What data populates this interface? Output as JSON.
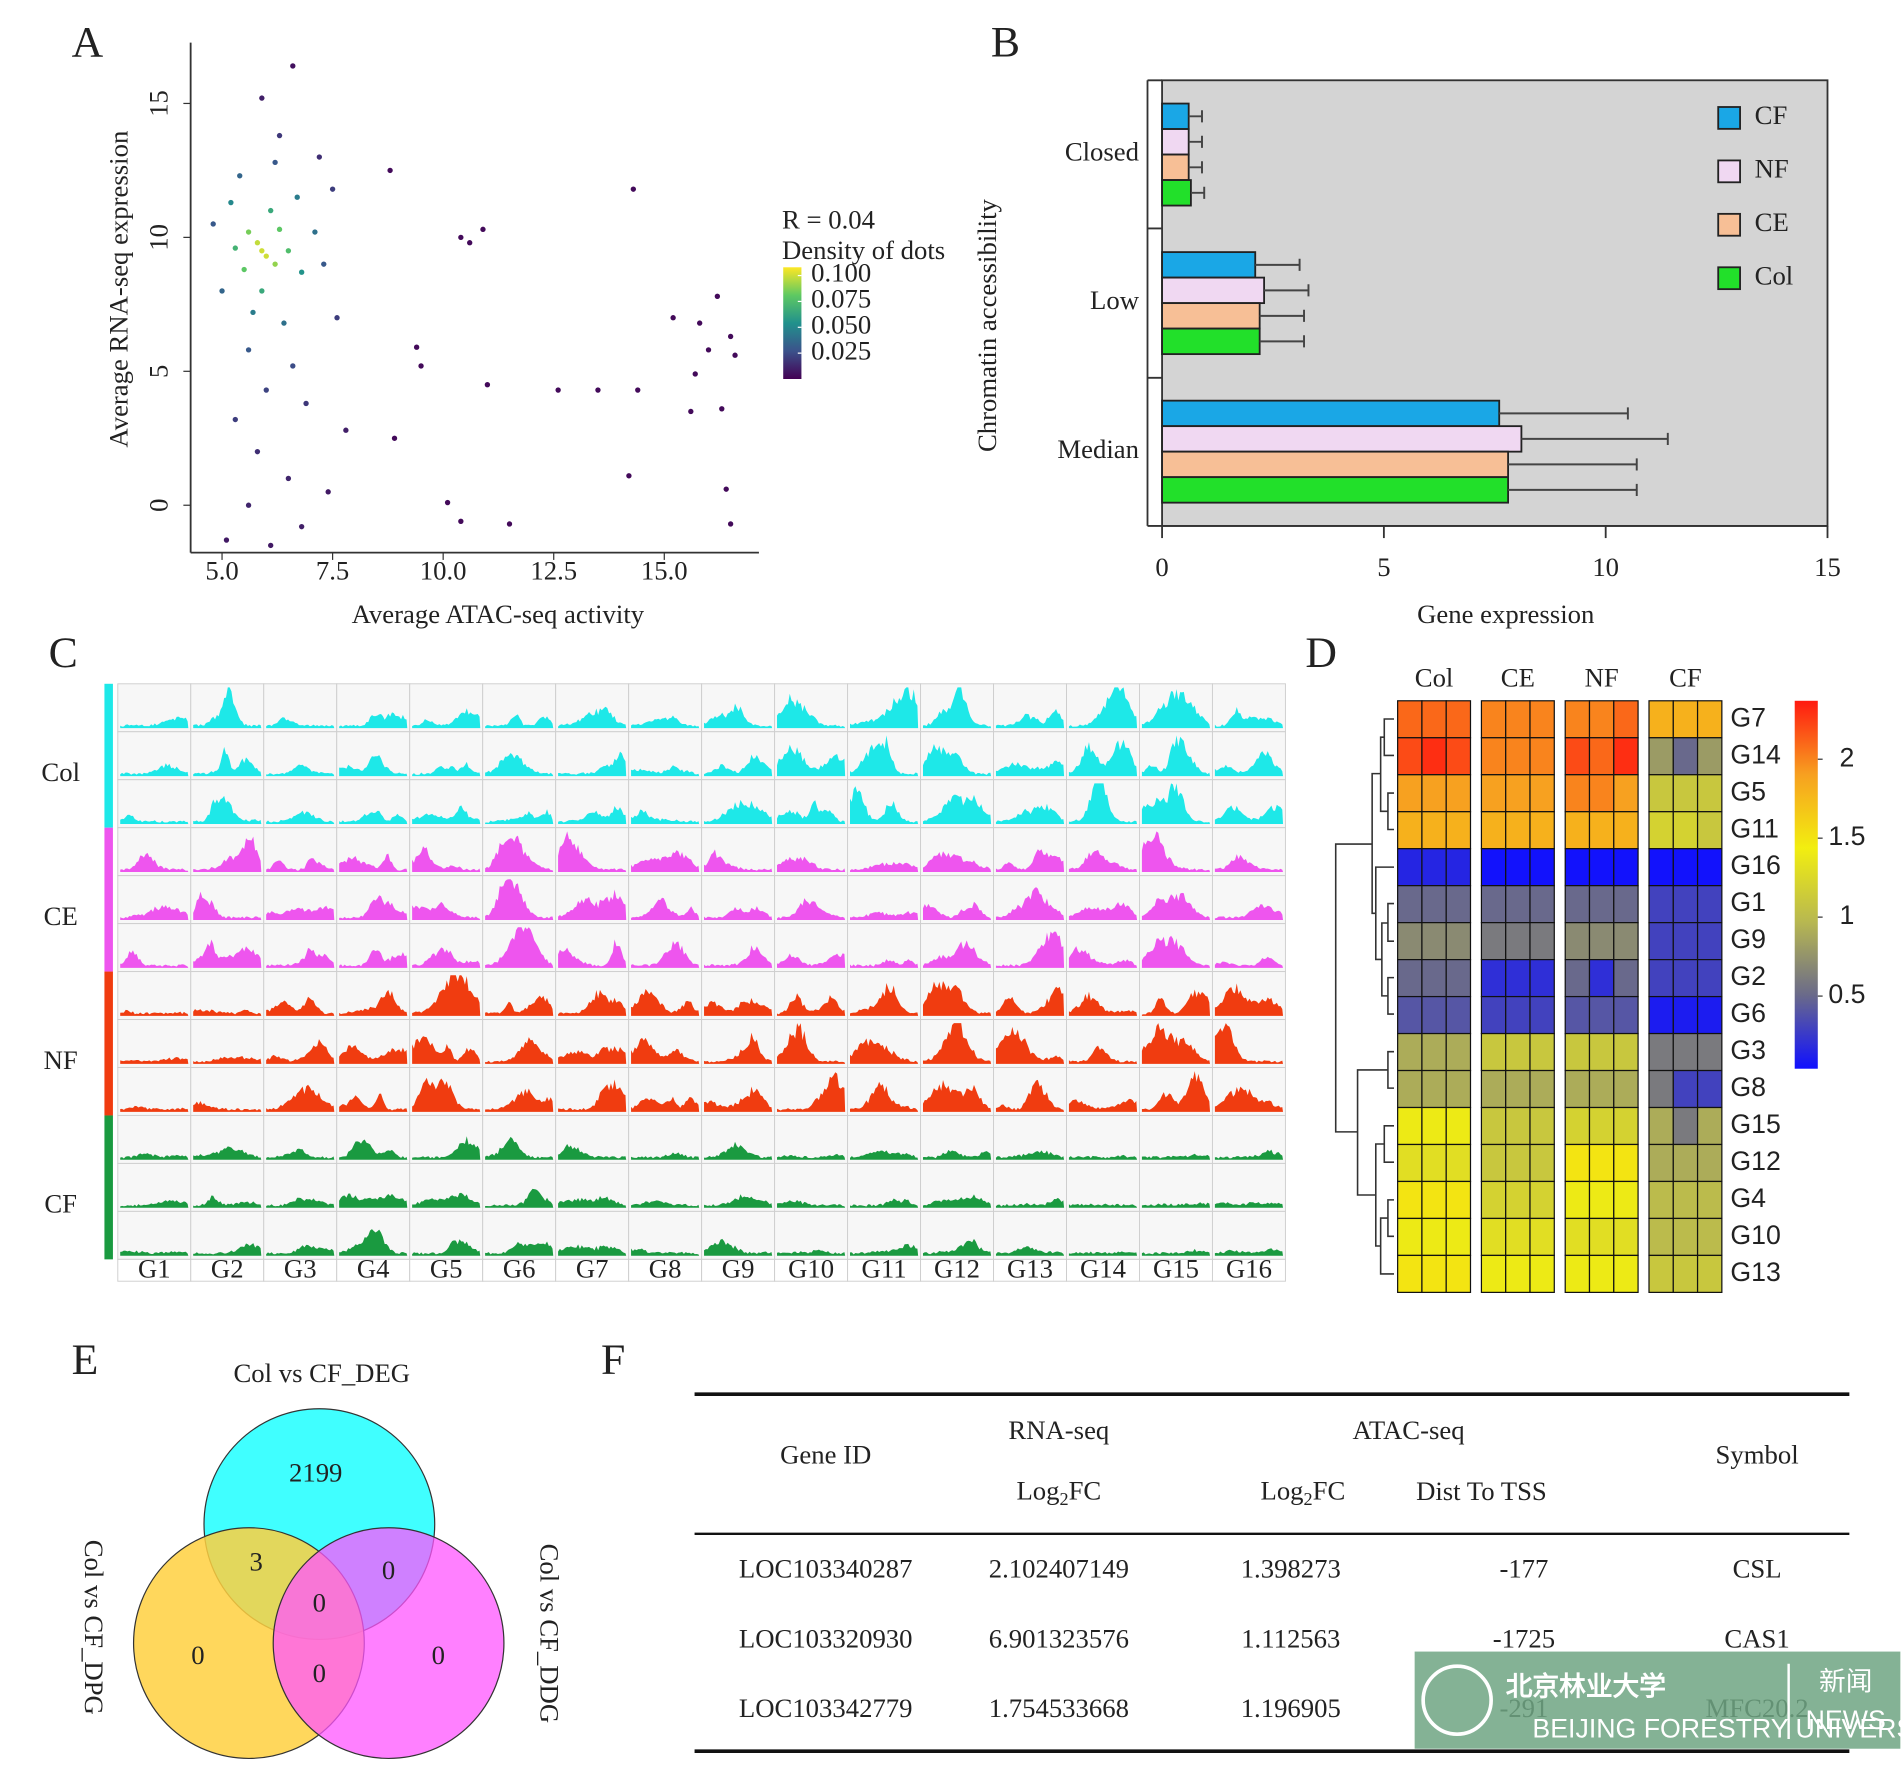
{
  "panels": [
    "A",
    "B",
    "C",
    "D",
    "E",
    "F"
  ],
  "chart_data": [
    {
      "type": "scatter",
      "x_label": "Average ATAC-seq activity",
      "y_label": "Average RNA-seq expression",
      "annotation": "R = 0.04",
      "colorbar_label": "Density of dots",
      "x": [
        5.9,
        6.0,
        5.8,
        6.2,
        5.6,
        6.3,
        5.5,
        6.5,
        5.3,
        6.1,
        5.9,
        6.8,
        5.2,
        6.7,
        5.7,
        6.4,
        7.1,
        5.0,
        5.4,
        6.2,
        7.3,
        5.6,
        6.6,
        6.0,
        7.5,
        5.3,
        6.9,
        6.3,
        5.8,
        6.5,
        5.6,
        6.8,
        7.6,
        7.2,
        5.9,
        6.6,
        4.8,
        7.8,
        5.1,
        6.1,
        7.4,
        10.4,
        10.6,
        10.9,
        8.8,
        14.3,
        9.5,
        11.0,
        12.6,
        13.5,
        14.4,
        16.0,
        16.2,
        16.5,
        16.6,
        15.2,
        15.8,
        16.3,
        14.2,
        15.6,
        10.1,
        10.4,
        11.5,
        16.5,
        16.4,
        8.9,
        9.4,
        15.7
      ],
      "y": [
        9.5,
        9.3,
        9.8,
        9.0,
        10.2,
        10.3,
        8.8,
        9.5,
        9.6,
        11.0,
        8.0,
        8.7,
        11.3,
        11.5,
        7.2,
        6.8,
        10.2,
        8.0,
        12.3,
        12.8,
        9.0,
        5.8,
        5.2,
        4.3,
        11.8,
        3.2,
        3.8,
        13.8,
        2.0,
        1.0,
        0.0,
        -0.8,
        7.0,
        13.0,
        15.2,
        16.4,
        10.5,
        2.8,
        -1.3,
        -1.5,
        0.5,
        10.0,
        9.8,
        10.3,
        12.5,
        11.8,
        5.2,
        4.5,
        4.3,
        4.3,
        4.3,
        5.8,
        7.8,
        6.3,
        5.6,
        7.0,
        6.8,
        3.6,
        1.1,
        3.5,
        0.1,
        -0.6,
        -0.7,
        -0.7,
        0.6,
        2.5,
        5.9,
        4.9
      ],
      "density": [
        0.1,
        0.1,
        0.098,
        0.09,
        0.085,
        0.08,
        0.08,
        0.075,
        0.07,
        0.065,
        0.065,
        0.055,
        0.05,
        0.045,
        0.045,
        0.04,
        0.04,
        0.035,
        0.035,
        0.03,
        0.03,
        0.03,
        0.025,
        0.022,
        0.02,
        0.02,
        0.018,
        0.018,
        0.015,
        0.012,
        0.012,
        0.01,
        0.02,
        0.015,
        0.01,
        0.005,
        0.03,
        0.01,
        0.008,
        0.008,
        0.008,
        0.003,
        0.003,
        0.003,
        0.003,
        0.003,
        0.003,
        0.003,
        0.003,
        0.003,
        0.003,
        0.003,
        0.003,
        0.003,
        0.003,
        0.003,
        0.003,
        0.003,
        0.003,
        0.003,
        0.003,
        0.003,
        0.003,
        0.003,
        0.003,
        0.003,
        0.003,
        0.003
      ],
      "xlim": [
        4.29,
        17.14
      ],
      "ylim": [
        -1.77,
        17.27
      ],
      "xticks": [
        {
          "value": 5,
          "label": "5.0"
        },
        {
          "value": 7.5,
          "label": "7.5"
        },
        {
          "value": 10,
          "label": "10.0"
        },
        {
          "value": 12.5,
          "label": "12.5"
        },
        {
          "value": 15,
          "label": "15.0"
        }
      ],
      "yticks": [
        0,
        5,
        10,
        15
      ],
      "colormap": [
        "#440154",
        "#3b528b",
        "#21918c",
        "#5ec962",
        "#fde725"
      ],
      "clim": [
        0,
        0.108
      ],
      "cticks": [
        {
          "value": 0.1,
          "label": "0.100"
        },
        0.075,
        {
          "value": 0.05,
          "label": "0.050"
        },
        0.025
      ]
    },
    {
      "type": "bar",
      "orientation": "horizontal",
      "y_label": "Chromatin accessibility",
      "x_label": "Gene expression",
      "categories": [
        "Closed",
        "Low",
        "Median"
      ],
      "series": [
        {
          "name": "CF",
          "color": "#1aa7e6",
          "values": [
            0.6,
            2.1,
            7.6
          ],
          "errors": [
            0.3,
            1.0,
            2.9
          ]
        },
        {
          "name": "NF",
          "color": "#f0d8f2",
          "values": [
            0.6,
            2.3,
            8.1
          ],
          "errors": [
            0.3,
            1.0,
            3.3
          ]
        },
        {
          "name": "CE",
          "color": "#f7bf96",
          "values": [
            0.6,
            2.2,
            7.8
          ],
          "errors": [
            0.3,
            1.0,
            2.9
          ]
        },
        {
          "name": "Col",
          "color": "#22e02a",
          "values": [
            0.65,
            2.2,
            7.8
          ],
          "errors": [
            0.3,
            1.0,
            2.9
          ]
        }
      ],
      "xlim": [
        0,
        15
      ],
      "xticks": [
        0,
        5,
        10,
        15
      ],
      "background": "#d4d4d4",
      "legend": "top-right"
    },
    {
      "type": "heatmap",
      "groups": [
        "Col",
        "CE",
        "NF",
        "CF"
      ],
      "rows": [
        "G7",
        "G14",
        "G5",
        "G11",
        "G16",
        "G1",
        "G9",
        "G2",
        "G6",
        "G3",
        "G8",
        "G15",
        "G12",
        "G4",
        "G10",
        "G13"
      ],
      "values": [
        [
          2.1,
          2.1,
          2.1,
          2.0,
          2.0,
          2.0,
          2.0,
          2.0,
          2.1,
          1.8,
          1.8,
          1.8
        ],
        [
          2.2,
          2.3,
          2.2,
          2.0,
          2.0,
          2.0,
          2.2,
          2.1,
          2.3,
          0.8,
          0.5,
          0.8
        ],
        [
          1.9,
          1.9,
          1.9,
          1.9,
          1.9,
          1.9,
          2.0,
          2.0,
          1.9,
          1.1,
          1.1,
          1.1
        ],
        [
          1.8,
          1.8,
          1.8,
          1.8,
          1.8,
          1.8,
          1.8,
          1.8,
          1.8,
          1.2,
          1.2,
          1.1
        ],
        [
          0.15,
          0.15,
          0.15,
          0.05,
          0.05,
          0.05,
          0.05,
          0.05,
          0.05,
          0.05,
          0.05,
          0.05
        ],
        [
          0.5,
          0.5,
          0.5,
          0.5,
          0.5,
          0.5,
          0.5,
          0.5,
          0.5,
          0.3,
          0.3,
          0.3
        ],
        [
          0.7,
          0.7,
          0.7,
          0.6,
          0.6,
          0.6,
          0.7,
          0.7,
          0.7,
          0.3,
          0.3,
          0.3
        ],
        [
          0.5,
          0.5,
          0.5,
          0.2,
          0.2,
          0.2,
          0.5,
          0.2,
          0.5,
          0.3,
          0.3,
          0.3
        ],
        [
          0.4,
          0.4,
          0.4,
          0.3,
          0.3,
          0.3,
          0.4,
          0.4,
          0.4,
          0.1,
          0.1,
          0.1
        ],
        [
          0.9,
          0.9,
          0.9,
          1.1,
          1.1,
          1.1,
          1.1,
          1.1,
          1.1,
          0.6,
          0.6,
          0.6
        ],
        [
          0.9,
          0.9,
          0.9,
          0.9,
          0.9,
          0.9,
          0.9,
          0.9,
          0.9,
          0.6,
          0.3,
          0.3
        ],
        [
          1.4,
          1.4,
          1.4,
          1.1,
          1.1,
          1.1,
          1.2,
          1.2,
          1.2,
          0.9,
          0.6,
          0.9
        ],
        [
          1.3,
          1.3,
          1.3,
          1.1,
          1.1,
          1.1,
          1.5,
          1.5,
          1.5,
          0.9,
          0.9,
          0.9
        ],
        [
          1.5,
          1.5,
          1.5,
          1.2,
          1.2,
          1.2,
          1.4,
          1.4,
          1.4,
          1.0,
          1.0,
          1.0
        ],
        [
          1.4,
          1.4,
          1.4,
          1.3,
          1.3,
          1.3,
          1.3,
          1.3,
          1.3,
          1.0,
          1.0,
          1.0
        ],
        [
          1.5,
          1.5,
          1.5,
          1.4,
          1.4,
          1.4,
          1.4,
          1.4,
          1.4,
          1.1,
          1.1,
          1.1
        ]
      ],
      "colormap": [
        "#1010ff",
        "#6a6a8a",
        "#b8b850",
        "#f2ee10",
        "#f7a020",
        "#ff1a10"
      ],
      "clim": [
        0.04,
        2.37
      ],
      "cticks": [
        2,
        1.5,
        1,
        0.5
      ]
    }
  ],
  "tracks": {
    "samples": [
      {
        "name": "Col",
        "color": "#1ee8e8"
      },
      {
        "name": "CE",
        "color": "#ee55ee"
      },
      {
        "name": "NF",
        "color": "#f03c10"
      },
      {
        "name": "CF",
        "color": "#1a9a40"
      }
    ],
    "genes": [
      "G1",
      "G2",
      "G3",
      "G4",
      "G5",
      "G6",
      "G7",
      "G8",
      "G9",
      "G10",
      "G11",
      "G12",
      "G13",
      "G14",
      "G15",
      "G16"
    ]
  },
  "venn": {
    "sets": [
      "Col vs CF_DEG",
      "Col vs CF_DPG",
      "Col vs CF_DDG"
    ],
    "counts": [
      2199,
      3,
      0,
      0,
      0,
      0,
      0
    ]
  },
  "table": {
    "header": {
      "gene_id": "Gene ID",
      "rna": "RNA-seq",
      "atac": "ATAC-seq",
      "symbol": "Symbol",
      "rna_fc": [
        "Log",
        "2",
        "FC"
      ],
      "atac_fc": [
        "Log",
        "2",
        "FC"
      ],
      "dist": "Dist To TSS"
    },
    "rows": [
      [
        "LOC103340287",
        2.102407149,
        1.398273,
        -177,
        "CSL"
      ],
      [
        "LOC103320930",
        6.901323576,
        1.112563,
        -1725,
        "CAS1"
      ],
      [
        "LOC103342779",
        1.754533668,
        1.196905,
        -291,
        "MFC20.2"
      ]
    ]
  },
  "watermark": {
    "name_cn": "北京林业大学",
    "news_cn": "新闻",
    "news": "NEWS",
    "name_en": "BEIJING FORESTRY UNIVERSITY"
  }
}
